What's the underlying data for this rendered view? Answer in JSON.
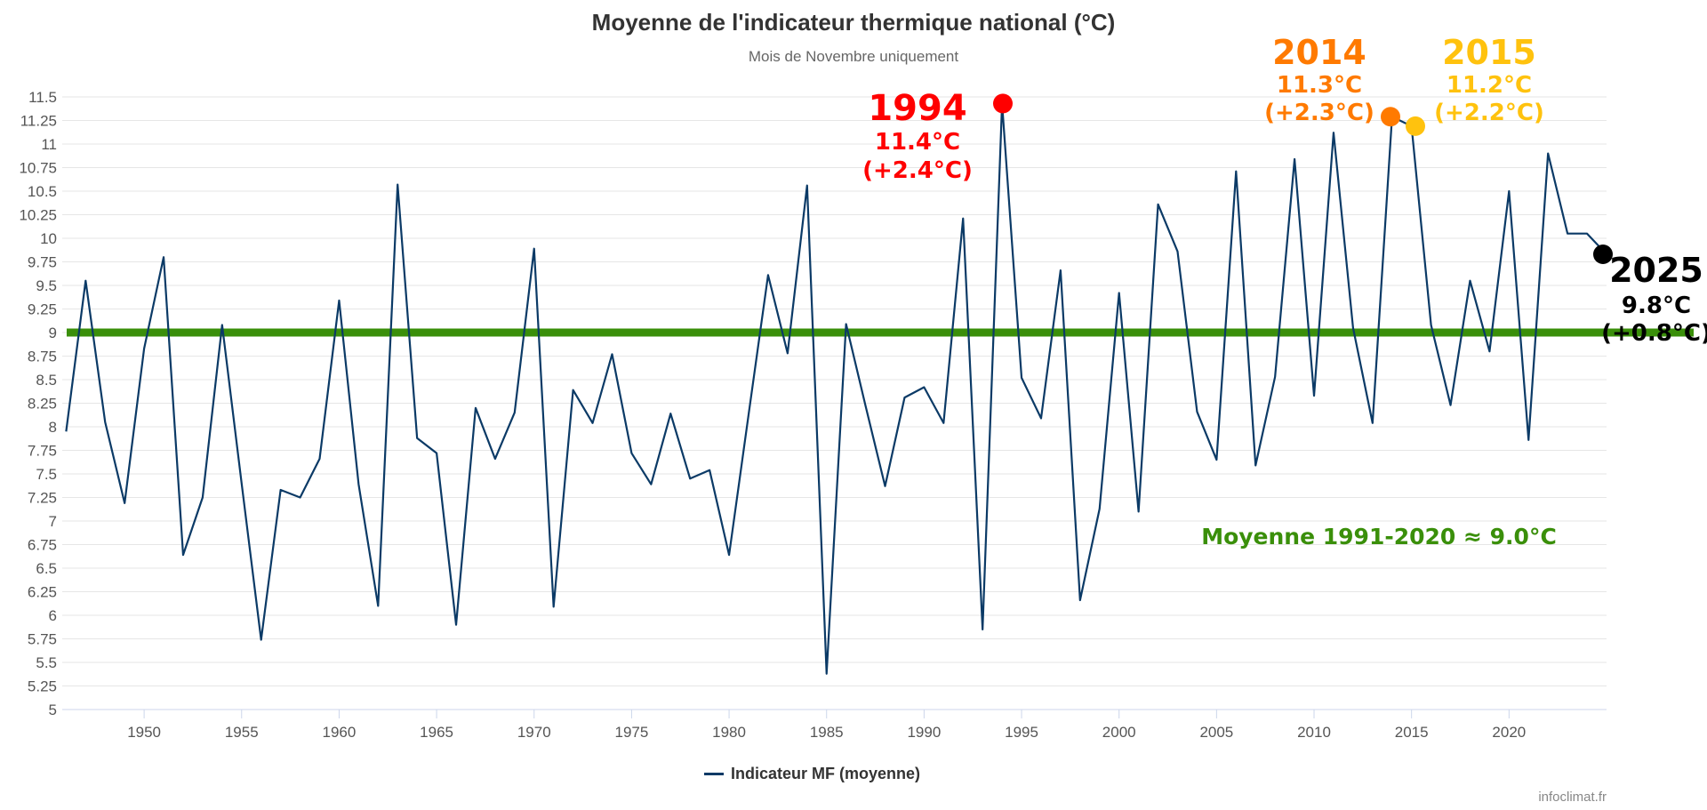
{
  "chart_data": {
    "type": "line",
    "title": "Moyenne de l'indicateur thermique national (°C)",
    "subtitle": "Mois de Novembre uniquement",
    "xlabel": "",
    "ylabel": "",
    "xlim": [
      1945.8,
      2025
    ],
    "ylim": [
      5,
      11.5
    ],
    "grid": true,
    "legend_position": "bottom",
    "y_ticks": [
      "5",
      "5.25",
      "5.5",
      "5.75",
      "6",
      "6.25",
      "6.5",
      "6.75",
      "7",
      "7.25",
      "7.5",
      "7.75",
      "8",
      "8.25",
      "8.5",
      "8.75",
      "9",
      "9.25",
      "9.5",
      "9.75",
      "10",
      "10.25",
      "10.5",
      "10.75",
      "11",
      "11.25",
      "11.5"
    ],
    "x_ticks": [
      "1950",
      "1955",
      "1960",
      "1965",
      "1970",
      "1975",
      "1980",
      "1985",
      "1990",
      "1995",
      "2000",
      "2005",
      "2010",
      "2015",
      "2020"
    ],
    "series": [
      {
        "name": "Indicateur MF (moyenne)",
        "color": "#0b3a66",
        "x": [
          1946,
          1947,
          1948,
          1949,
          1950,
          1951,
          1952,
          1953,
          1954,
          1955,
          1956,
          1957,
          1958,
          1959,
          1960,
          1961,
          1962,
          1963,
          1964,
          1965,
          1966,
          1967,
          1968,
          1969,
          1970,
          1971,
          1972,
          1973,
          1974,
          1975,
          1976,
          1977,
          1978,
          1979,
          1980,
          1981,
          1982,
          1983,
          1984,
          1985,
          1986,
          1987,
          1988,
          1989,
          1990,
          1991,
          1992,
          1993,
          1994,
          1995,
          1996,
          1997,
          1998,
          1999,
          2000,
          2001,
          2002,
          2003,
          2004,
          2005,
          2006,
          2007,
          2008,
          2009,
          2010,
          2011,
          2012,
          2013,
          2014,
          2015,
          2016,
          2017,
          2018,
          2019,
          2020,
          2021,
          2022,
          2023,
          2024,
          2025
        ],
        "values": [
          7.95,
          9.55,
          8.05,
          7.19,
          8.83,
          9.8,
          6.64,
          7.25,
          9.08,
          7.4,
          5.74,
          7.33,
          7.25,
          7.66,
          9.34,
          7.39,
          6.1,
          10.57,
          7.88,
          7.72,
          5.9,
          8.2,
          7.66,
          8.15,
          9.89,
          6.09,
          8.39,
          8.04,
          8.77,
          7.72,
          7.39,
          8.14,
          7.45,
          7.54,
          6.64,
          8.13,
          9.61,
          8.78,
          10.56,
          5.38,
          9.09,
          8.22,
          7.37,
          8.31,
          8.42,
          8.04,
          10.21,
          5.85,
          11.43,
          8.52,
          8.09,
          9.66,
          6.16,
          7.13,
          9.42,
          7.1,
          10.36,
          9.86,
          8.16,
          7.65,
          10.71,
          7.59,
          8.53,
          10.84,
          8.33,
          11.12,
          9.05,
          8.04,
          11.29,
          11.19,
          9.08,
          8.23,
          9.55,
          8.8,
          10.5,
          7.86,
          10.9,
          10.05,
          10.05,
          9.83
        ]
      }
    ],
    "reference_line": {
      "value": 9.0,
      "color": "#3a8f0a",
      "label": "Moyenne 1991-2020  ≈ 9.0°C"
    },
    "highlights": [
      {
        "year": "1994",
        "value": "11.4°C",
        "anomaly": "(+2.4°C)",
        "y": 11.43,
        "color": "#ff0000"
      },
      {
        "year": "2014",
        "value": "11.3°C",
        "anomaly": "(+2.3°C)",
        "y": 11.29,
        "color": "#ff7a00"
      },
      {
        "year": "2015",
        "value": "11.2°C",
        "anomaly": "(+2.2°C)",
        "y": 11.19,
        "color": "#ffc20e"
      },
      {
        "year": "2025",
        "value": "9.8°C",
        "anomaly": "(+0.8°C)",
        "y": 9.83,
        "color": "#000000"
      }
    ]
  },
  "legend": {
    "label": "Indicateur MF (moyenne)"
  },
  "credit": "infoclimat.fr"
}
